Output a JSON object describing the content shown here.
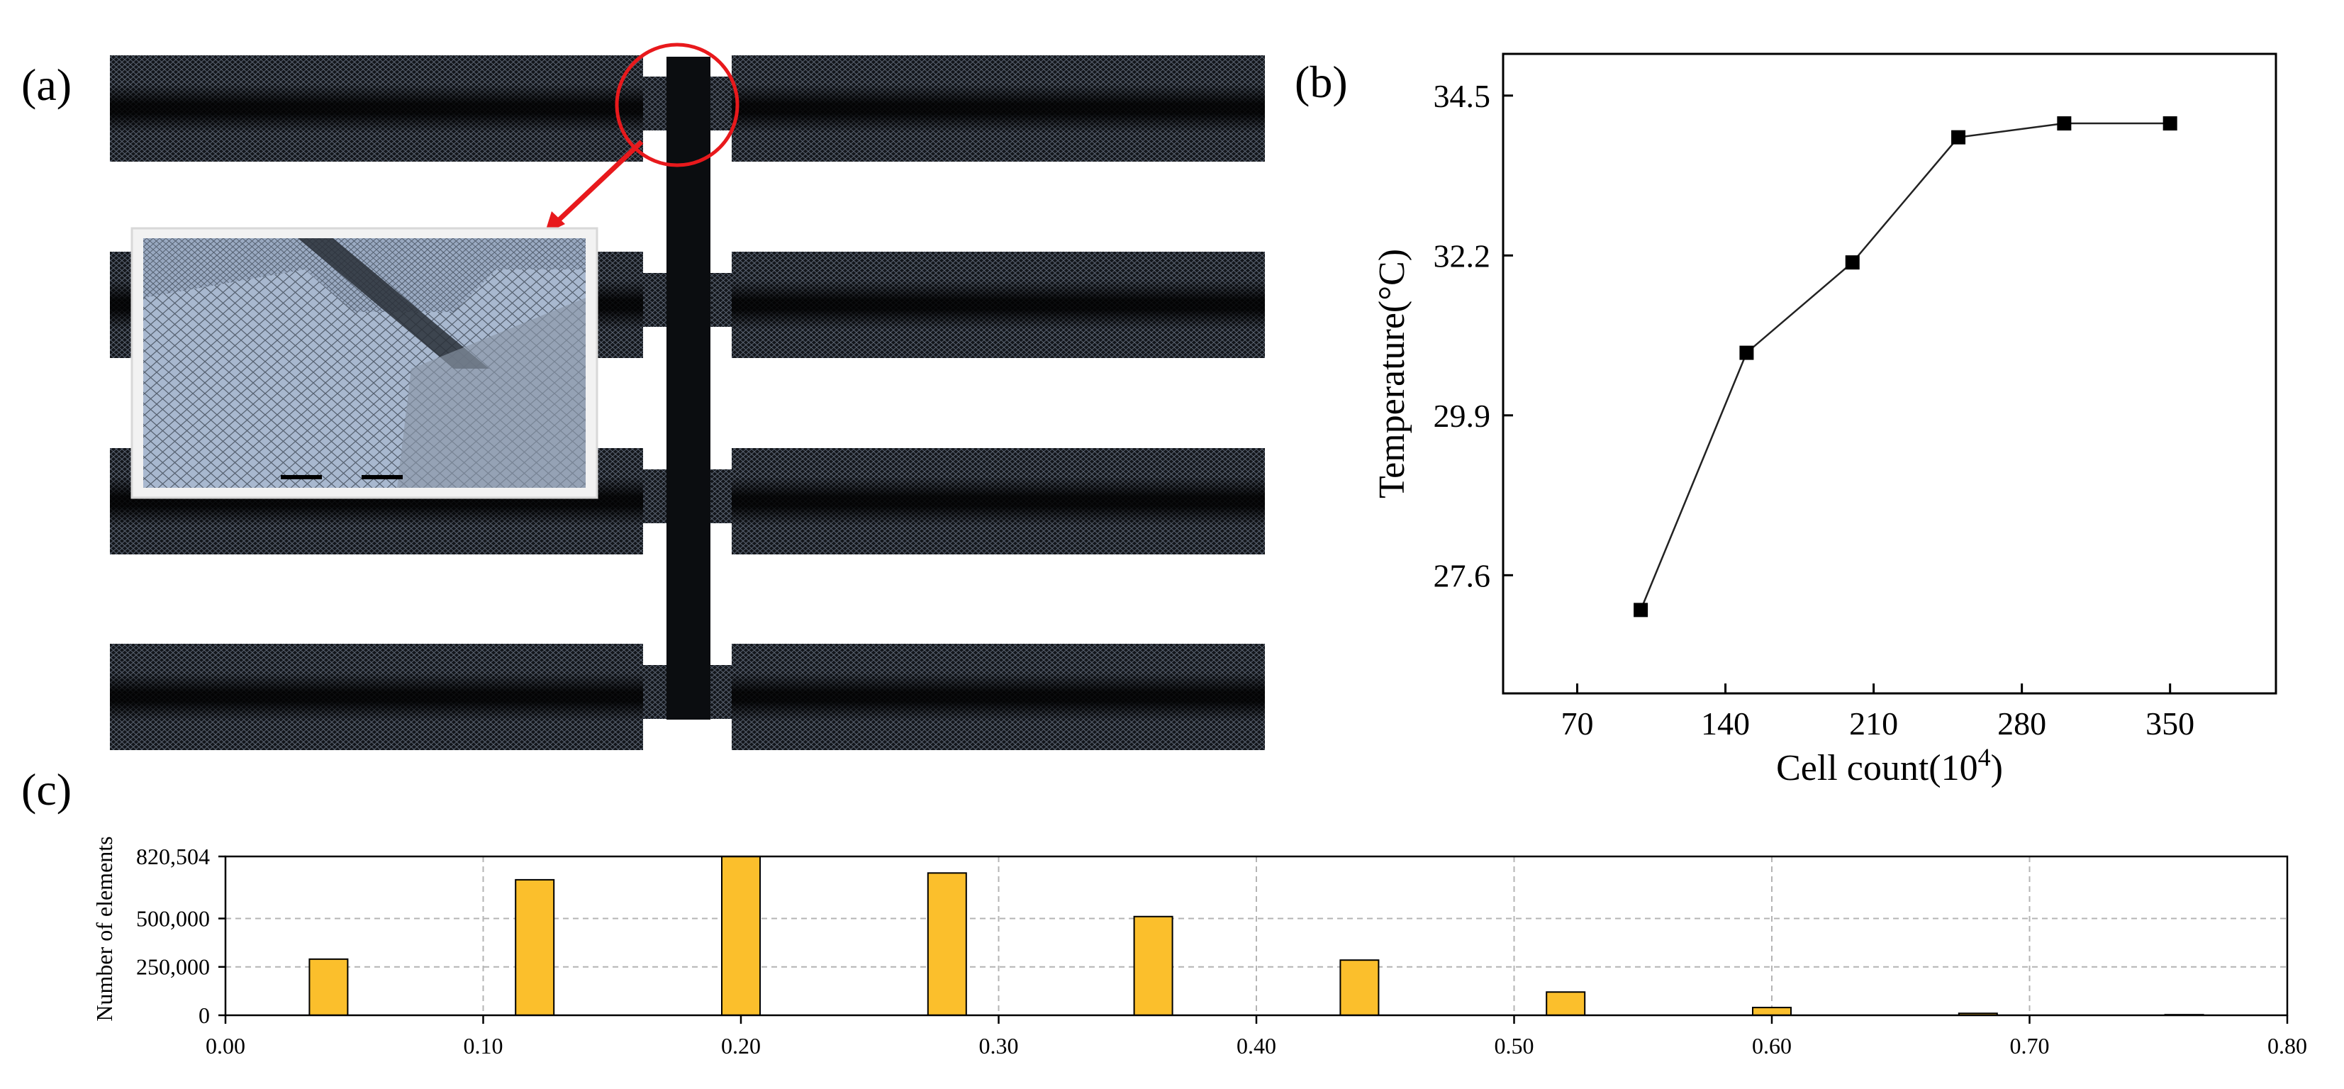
{
  "panels": {
    "a": "(a)",
    "b": "(b)",
    "c": "(c)"
  },
  "colors": {
    "mesh_dark": "#13161b",
    "mesh_line": "#5b6472",
    "highlight": "#e8191c",
    "inset_face": "#a8b8cf",
    "bar_fill": "#fbbf2c",
    "axis": "#000000",
    "grid": "#b4b4b4"
  },
  "chart_data": [
    {
      "type": "line",
      "x": [
        100,
        150,
        200,
        250,
        300,
        350
      ],
      "y": [
        27.1,
        30.8,
        32.1,
        33.9,
        34.1,
        34.1
      ],
      "xlabel": "Cell count(10",
      "xlabel_sup": "4",
      "xlabel_tail": ")",
      "ylabel": "Temperature(°C)",
      "xticks": [
        "70",
        "140",
        "210",
        "280",
        "350"
      ],
      "xtick_values": [
        70,
        140,
        210,
        280,
        350
      ],
      "yticks": [
        "27.6",
        "29.9",
        "32.2",
        "34.5"
      ],
      "ytick_values": [
        27.6,
        29.9,
        32.2,
        34.5
      ],
      "xlim": [
        35,
        400
      ],
      "ylim": [
        25.9,
        35.1
      ],
      "marker": "square",
      "grid": false
    },
    {
      "type": "bar",
      "x": [
        0.04,
        0.12,
        0.2,
        0.28,
        0.36,
        0.44,
        0.52,
        0.6,
        0.68,
        0.76
      ],
      "values": [
        290000,
        700000,
        820504,
        735000,
        510000,
        285000,
        120000,
        40000,
        10000,
        3000
      ],
      "ylabel": "Number of elements",
      "xticks": [
        "0.00",
        "0.10",
        "0.20",
        "0.30",
        "0.40",
        "0.50",
        "0.60",
        "0.70",
        "0.80"
      ],
      "xtick_values": [
        0,
        0.1,
        0.2,
        0.3,
        0.4,
        0.5,
        0.6,
        0.7,
        0.8
      ],
      "yticks": [
        "0",
        "250,000",
        "500,000",
        "820,504"
      ],
      "ytick_values": [
        0,
        250000,
        500000,
        820504
      ],
      "xlim": [
        0,
        0.8
      ],
      "ylim": [
        0,
        820504
      ],
      "grid": true
    }
  ]
}
